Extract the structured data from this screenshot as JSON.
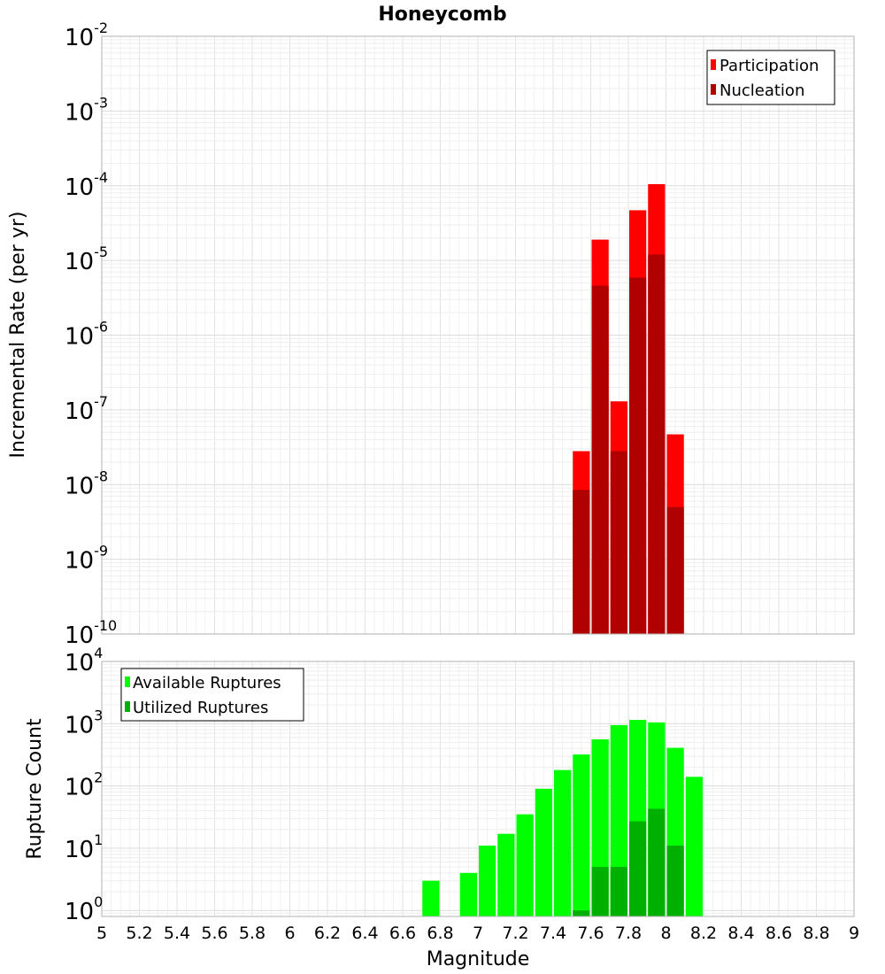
{
  "chart_data": [
    {
      "type": "bar",
      "title": "Honeycomb",
      "xlabel": "",
      "ylabel": "Incremental Rate (per yr)",
      "yscale": "log",
      "ylim": [
        1e-10,
        0.01
      ],
      "xlim": [
        5,
        9
      ],
      "bar_width": 0.1,
      "grid": true,
      "legend_position": "top-right",
      "x": [
        7.55,
        7.65,
        7.75,
        7.85,
        7.95,
        8.05
      ],
      "series": [
        {
          "name": "Participation",
          "color": "#ff0000",
          "values": [
            2.8e-08,
            1.9e-05,
            1.3e-07,
            4.7e-05,
            0.000105,
            4.7e-08
          ]
        },
        {
          "name": "Nucleation",
          "color": "#b00000",
          "values": [
            8.5e-09,
            4.6e-06,
            2.8e-08,
            5.9e-06,
            1.2e-05,
            5e-09
          ]
        }
      ]
    },
    {
      "type": "bar",
      "title": "",
      "xlabel": "Magnitude",
      "ylabel": "Rupture Count",
      "yscale": "log",
      "ylim": [
        0.8,
        10000
      ],
      "xlim": [
        5,
        9
      ],
      "bar_width": 0.1,
      "grid": true,
      "legend_position": "top-left",
      "x_ticks": [
        "5",
        "5.2",
        "5.4",
        "5.6",
        "5.8",
        "6",
        "6.2",
        "6.4",
        "6.6",
        "6.8",
        "7",
        "7.2",
        "7.4",
        "7.6",
        "7.8",
        "8",
        "8.2",
        "8.4",
        "8.6",
        "8.8",
        "9"
      ],
      "x": [
        6.75,
        6.95,
        7.05,
        7.15,
        7.25,
        7.35,
        7.45,
        7.55,
        7.65,
        7.75,
        7.85,
        7.95,
        8.05,
        8.15
      ],
      "series": [
        {
          "name": "Available Ruptures",
          "color": "#00ff00",
          "values": [
            3,
            4,
            11,
            17,
            35,
            90,
            180,
            320,
            560,
            950,
            1150,
            1050,
            410,
            140
          ]
        },
        {
          "name": "Utilized Ruptures",
          "color": "#00b000",
          "values": [
            null,
            null,
            null,
            null,
            null,
            null,
            null,
            1,
            5,
            5,
            27,
            43,
            11,
            null
          ]
        }
      ]
    }
  ]
}
